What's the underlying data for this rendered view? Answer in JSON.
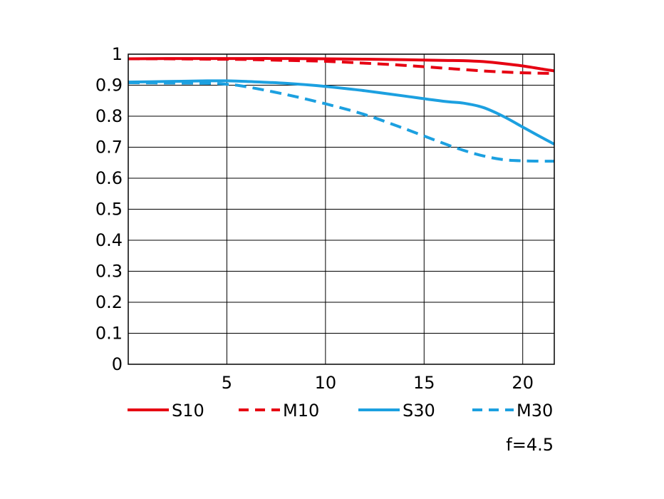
{
  "chart_data": {
    "type": "line",
    "xlim": [
      0,
      21.6
    ],
    "ylim": [
      0,
      1
    ],
    "x_ticks": [
      5,
      10,
      15,
      20
    ],
    "y_ticks": [
      0,
      0.1,
      0.2,
      0.3,
      0.4,
      0.5,
      0.6,
      0.7,
      0.8,
      0.9,
      1
    ],
    "x_tick_labels": [
      "5",
      "10",
      "15",
      "20"
    ],
    "y_tick_labels": [
      "0",
      "0.1",
      "0.2",
      "0.3",
      "0.4",
      "0.5",
      "0.6",
      "0.7",
      "0.8",
      "0.9",
      "1"
    ],
    "grid": true,
    "legend_position": "bottom",
    "annotation": "f=4.5",
    "series": [
      {
        "name": "S10",
        "color": "#e60012",
        "dash": false,
        "x": [
          0,
          2,
          4,
          6,
          8,
          10,
          12,
          14,
          16,
          17,
          18,
          19,
          20,
          21,
          21.6
        ],
        "y": [
          0.985,
          0.986,
          0.986,
          0.986,
          0.986,
          0.985,
          0.984,
          0.982,
          0.98,
          0.979,
          0.976,
          0.97,
          0.962,
          0.952,
          0.946
        ]
      },
      {
        "name": "M10",
        "color": "#e60012",
        "dash": true,
        "x": [
          0,
          2,
          4,
          6,
          8,
          10,
          12,
          14,
          16,
          18,
          20,
          21.6
        ],
        "y": [
          0.985,
          0.985,
          0.984,
          0.983,
          0.98,
          0.977,
          0.971,
          0.964,
          0.955,
          0.946,
          0.94,
          0.938
        ]
      },
      {
        "name": "S30",
        "color": "#1ca0e0",
        "dash": false,
        "x": [
          0,
          2,
          4,
          5,
          6,
          8,
          10,
          12,
          14,
          16,
          17,
          18,
          19,
          20,
          21,
          21.6
        ],
        "y": [
          0.91,
          0.912,
          0.914,
          0.914,
          0.912,
          0.906,
          0.896,
          0.882,
          0.865,
          0.848,
          0.842,
          0.828,
          0.8,
          0.765,
          0.73,
          0.71
        ]
      },
      {
        "name": "M30",
        "color": "#1ca0e0",
        "dash": true,
        "x": [
          0,
          2,
          4,
          5,
          6,
          8,
          10,
          12,
          14,
          16,
          17,
          18,
          19,
          20,
          21,
          21.6
        ],
        "y": [
          0.908,
          0.907,
          0.906,
          0.903,
          0.895,
          0.87,
          0.84,
          0.805,
          0.76,
          0.712,
          0.69,
          0.672,
          0.66,
          0.656,
          0.655,
          0.655
        ]
      }
    ]
  }
}
